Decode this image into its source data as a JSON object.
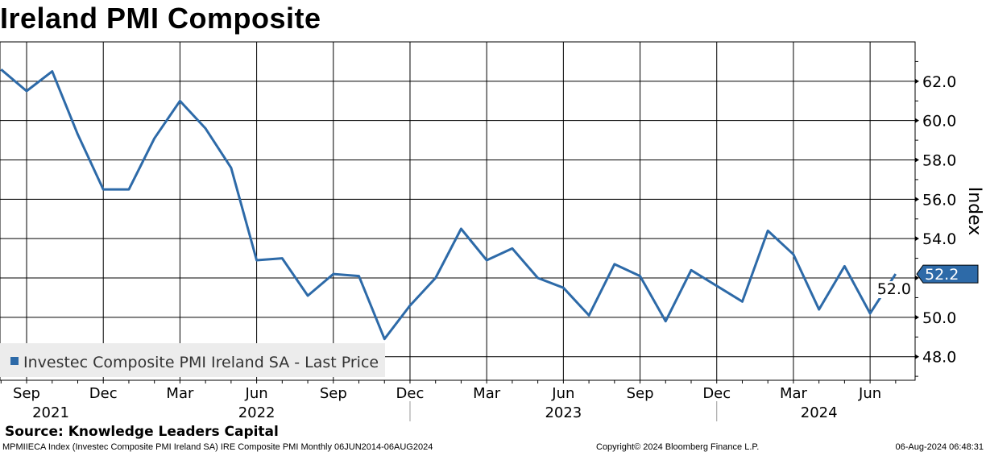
{
  "chart_data": {
    "type": "line",
    "title": "Ireland PMI Composite",
    "ylabel": "Index",
    "ylim": [
      46.8,
      64
    ],
    "yticks": [
      "48.0",
      "50.0",
      "52.0",
      "54.0",
      "56.0",
      "58.0",
      "60.0",
      "62.0"
    ],
    "grid": true,
    "legend_position": "bottom-left",
    "x": [
      "2021-08",
      "2021-09",
      "2021-10",
      "2021-11",
      "2021-12",
      "2022-01",
      "2022-02",
      "2022-03",
      "2022-04",
      "2022-05",
      "2022-06",
      "2022-07",
      "2022-08",
      "2022-09",
      "2022-10",
      "2022-11",
      "2022-12",
      "2023-01",
      "2023-02",
      "2023-03",
      "2023-04",
      "2023-05",
      "2023-06",
      "2023-07",
      "2023-08",
      "2023-09",
      "2023-10",
      "2023-11",
      "2023-12",
      "2024-01",
      "2024-02",
      "2024-03",
      "2024-04",
      "2024-05",
      "2024-06",
      "2024-07"
    ],
    "month_ticks": [
      {
        "label": "Sep",
        "month": 1
      },
      {
        "label": "Dec",
        "month": 4
      },
      {
        "label": "Mar",
        "month": 7
      },
      {
        "label": "Jun",
        "month": 10
      },
      {
        "label": "Sep",
        "month": 13
      },
      {
        "label": "Dec",
        "month": 16
      },
      {
        "label": "Mar",
        "month": 19
      },
      {
        "label": "Jun",
        "month": 22
      },
      {
        "label": "Sep",
        "month": 25
      },
      {
        "label": "Dec",
        "month": 28
      },
      {
        "label": "Mar",
        "month": 31
      },
      {
        "label": "Jun",
        "month": 34
      }
    ],
    "year_labels": [
      {
        "label": "2021",
        "month": 1
      },
      {
        "label": "2022",
        "month": 10
      },
      {
        "label": "2023",
        "month": 22
      },
      {
        "label": "2024",
        "month": 32
      }
    ],
    "series": [
      {
        "name": "Investec Composite PMI Ireland SA - Last Price",
        "color": "#2d6aa8",
        "values": [
          62.6,
          61.5,
          62.5,
          59.3,
          56.5,
          56.5,
          59.1,
          61.0,
          59.6,
          57.6,
          52.9,
          53.0,
          51.1,
          52.2,
          52.1,
          48.9,
          50.6,
          52.0,
          54.5,
          52.9,
          53.5,
          52.0,
          51.5,
          50.1,
          52.7,
          52.1,
          49.8,
          52.4,
          51.6,
          50.8,
          54.4,
          53.2,
          50.4,
          52.6,
          50.2,
          52.2
        ]
      }
    ],
    "last_value_label": "52.2"
  },
  "footer": {
    "source": "Source: Knowledge Leaders Capital",
    "ticker": "MPMIIECA Index (Investec Composite PMI Ireland SA) IRE Composite PMI  Monthly 06JUN2014-06AUG2024",
    "copyright": "Copyright© 2024 Bloomberg Finance L.P.",
    "timestamp": "06-Aug-2024 06:48:31"
  }
}
